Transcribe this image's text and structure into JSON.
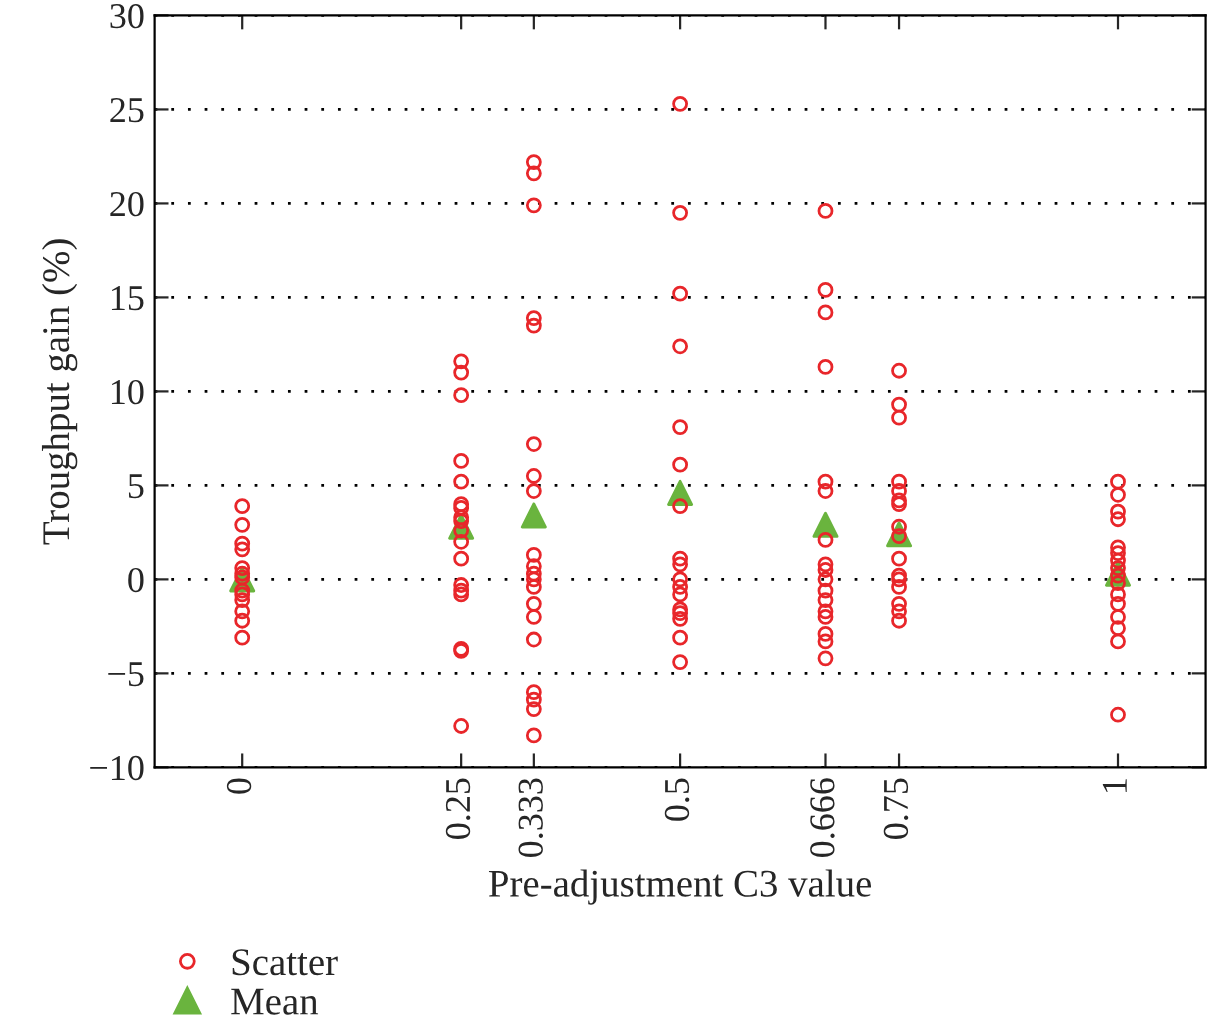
{
  "chart_data": {
    "type": "scatter",
    "xlabel": "Pre-adjustment C3 value",
    "ylabel": "Troughput gain (%)",
    "xlim": [
      -0.1,
      1.1
    ],
    "xticks": [
      0,
      0.25,
      0.333,
      0.5,
      0.666,
      0.75,
      1
    ],
    "ylim": [
      -10,
      30
    ],
    "yticks": [
      {
        "value": -10,
        "label": "−10"
      },
      {
        "value": -5,
        "label": "−5"
      },
      0,
      5,
      10,
      15,
      20,
      25,
      30
    ],
    "grid": "y",
    "legend": "bottom left",
    "series": [
      {
        "name": "Scatter",
        "marker": "circle",
        "color": "#e8262a",
        "x": [
          0,
          0,
          0,
          0,
          0,
          0,
          0,
          0,
          0,
          0,
          0,
          0,
          0,
          0.25,
          0.25,
          0.25,
          0.25,
          0.25,
          0.25,
          0.25,
          0.25,
          0.25,
          0.25,
          0.25,
          0.25,
          0.25,
          0.25,
          0.25,
          0.25,
          0.25,
          0.25,
          0.333,
          0.333,
          0.333,
          0.333,
          0.333,
          0.333,
          0.333,
          0.333,
          0.333,
          0.333,
          0.333,
          0.333,
          0.333,
          0.333,
          0.333,
          0.333,
          0.333,
          0.333,
          0.333,
          0.333,
          0.5,
          0.5,
          0.5,
          0.5,
          0.5,
          0.5,
          0.5,
          0.5,
          0.5,
          0.5,
          0.5,
          0.5,
          0.5,
          0.5,
          0.5,
          0.5,
          0.5,
          0.666,
          0.666,
          0.666,
          0.666,
          0.666,
          0.666,
          0.666,
          0.666,
          0.666,
          0.666,
          0.666,
          0.666,
          0.666,
          0.666,
          0.666,
          0.666,
          0.666,
          0.75,
          0.75,
          0.75,
          0.75,
          0.75,
          0.75,
          0.75,
          0.75,
          0.75,
          0.75,
          0.75,
          0.75,
          0.75,
          0.75,
          0.75,
          0.75,
          1,
          1,
          1,
          1,
          1,
          1,
          1,
          1,
          1,
          1,
          1,
          1,
          1,
          1,
          1,
          1
        ],
        "values": [
          3.9,
          2.9,
          1.9,
          1.6,
          0.6,
          0.3,
          0.1,
          -0.6,
          -0.8,
          -1.1,
          -1.7,
          -2.2,
          -3.1,
          11.6,
          11.0,
          9.8,
          6.3,
          5.2,
          4.0,
          3.8,
          3.3,
          3.1,
          2.6,
          2.0,
          1.1,
          -0.3,
          -0.6,
          -0.8,
          -3.7,
          -3.8,
          -7.8,
          22.2,
          21.6,
          19.9,
          13.9,
          13.5,
          7.2,
          5.5,
          4.7,
          1.3,
          0.7,
          0.3,
          0.0,
          -0.4,
          -1.3,
          -2.0,
          -3.2,
          -6.0,
          -6.4,
          -6.9,
          -8.3,
          25.3,
          19.5,
          15.2,
          12.4,
          8.1,
          6.1,
          3.9,
          1.1,
          0.8,
          0.0,
          -0.4,
          -0.8,
          -1.6,
          -1.8,
          -2.1,
          -3.1,
          -4.4,
          19.6,
          15.4,
          14.2,
          11.3,
          5.2,
          4.7,
          2.1,
          0.8,
          0.5,
          0.0,
          -0.6,
          -1.1,
          -1.7,
          -2.0,
          -2.9,
          -3.3,
          -4.2,
          11.1,
          9.3,
          8.6,
          5.2,
          4.7,
          4.2,
          4.0,
          2.8,
          2.3,
          1.1,
          0.2,
          0.0,
          -0.4,
          -1.3,
          -1.7,
          -2.2,
          5.2,
          4.5,
          3.6,
          3.2,
          1.7,
          1.4,
          1.0,
          0.6,
          0.2,
          -0.2,
          -0.8,
          -1.3,
          -2.0,
          -2.6,
          -3.3,
          -7.2
        ]
      },
      {
        "name": "Mean",
        "marker": "triangle",
        "color": "#6ab43e",
        "x": [
          0,
          0.25,
          0.333,
          0.5,
          0.666,
          0.75,
          1
        ],
        "values": [
          0.0,
          2.8,
          3.4,
          4.6,
          2.9,
          2.4,
          0.3
        ]
      }
    ]
  }
}
